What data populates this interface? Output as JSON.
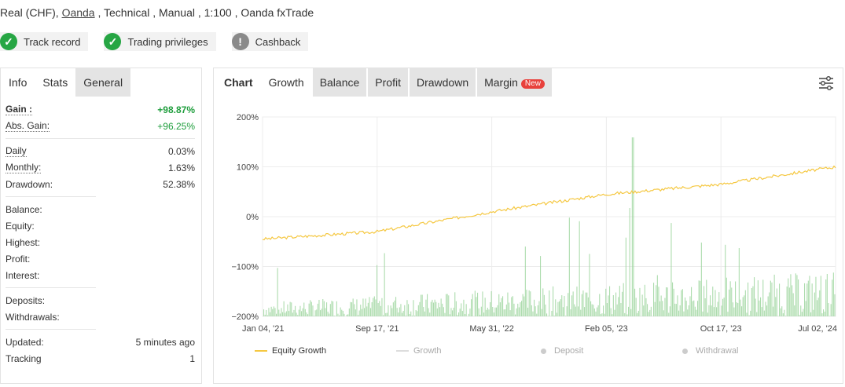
{
  "account": {
    "prefix": "Real (CHF), ",
    "broker": "Oanda",
    "suffix": " , Technical , Manual , 1:100 , Oanda fxTrade"
  },
  "badges": [
    {
      "label": "Track record",
      "icon": "check-icon",
      "color": "#27a644"
    },
    {
      "label": "Trading privileges",
      "icon": "check-icon",
      "color": "#27a644"
    },
    {
      "label": "Cashback",
      "icon": "exclamation-icon",
      "color": "#8a8a8a"
    }
  ],
  "stats_tabs": [
    "Info",
    "Stats",
    "General"
  ],
  "stats": {
    "gain": {
      "label": "Gain :",
      "value": "+98.87%"
    },
    "abs_gain": {
      "label": "Abs. Gain:",
      "value": "+96.25%"
    },
    "daily": {
      "label": "Daily",
      "value": "0.03%"
    },
    "monthly": {
      "label": "Monthly:",
      "value": "1.63%"
    },
    "drawdown": {
      "label": "Drawdown:",
      "value": "52.38%"
    },
    "balance": {
      "label": "Balance:",
      "value": ""
    },
    "equity": {
      "label": "Equity:",
      "value": ""
    },
    "highest": {
      "label": "Highest:",
      "value": ""
    },
    "profit": {
      "label": "Profit:",
      "value": ""
    },
    "interest": {
      "label": "Interest:",
      "value": ""
    },
    "deposits": {
      "label": "Deposits:",
      "value": ""
    },
    "withdrawals": {
      "label": "Withdrawals:",
      "value": ""
    },
    "updated": {
      "label": "Updated:",
      "value": "5 minutes ago"
    },
    "tracking": {
      "label": "Tracking",
      "value": "1"
    }
  },
  "chart_tabs": {
    "chart": "Chart",
    "growth": "Growth",
    "balance": "Balance",
    "profit": "Profit",
    "drawdown": "Drawdown",
    "margin": "Margin",
    "new_badge": "New"
  },
  "legend": {
    "equity_growth": "Equity Growth",
    "growth": "Growth",
    "deposit": "Deposit",
    "withdrawal": "Withdrawal"
  },
  "colors": {
    "gain_green": "#1f9e3d",
    "equity_line": "#f5c842",
    "volume_bars": "#9fd6a0",
    "new_badge": "#e8413c"
  },
  "chart_data": {
    "type": "line",
    "title": "",
    "xlabel": "",
    "ylabel": "",
    "y_ticks": [
      "200%",
      "100%",
      "0%",
      "−100%",
      "−200%"
    ],
    "ylim": [
      -200,
      200
    ],
    "x_ticks": [
      "Jan 04, '21",
      "Sep 17, '21",
      "May 31, '22",
      "Feb 05, '23",
      "Oct 17, '23",
      "Jul 02, '24"
    ],
    "grid": true,
    "legend_position": "bottom",
    "series": [
      {
        "name": "Equity Growth",
        "x": [
          "Jan 04, '21",
          "Sep 17, '21",
          "May 31, '22",
          "Feb 05, '23",
          "Oct 17, '23",
          "Jul 02, '24"
        ],
        "values": [
          -45,
          -30,
          10,
          45,
          65,
          100
        ]
      }
    ]
  }
}
